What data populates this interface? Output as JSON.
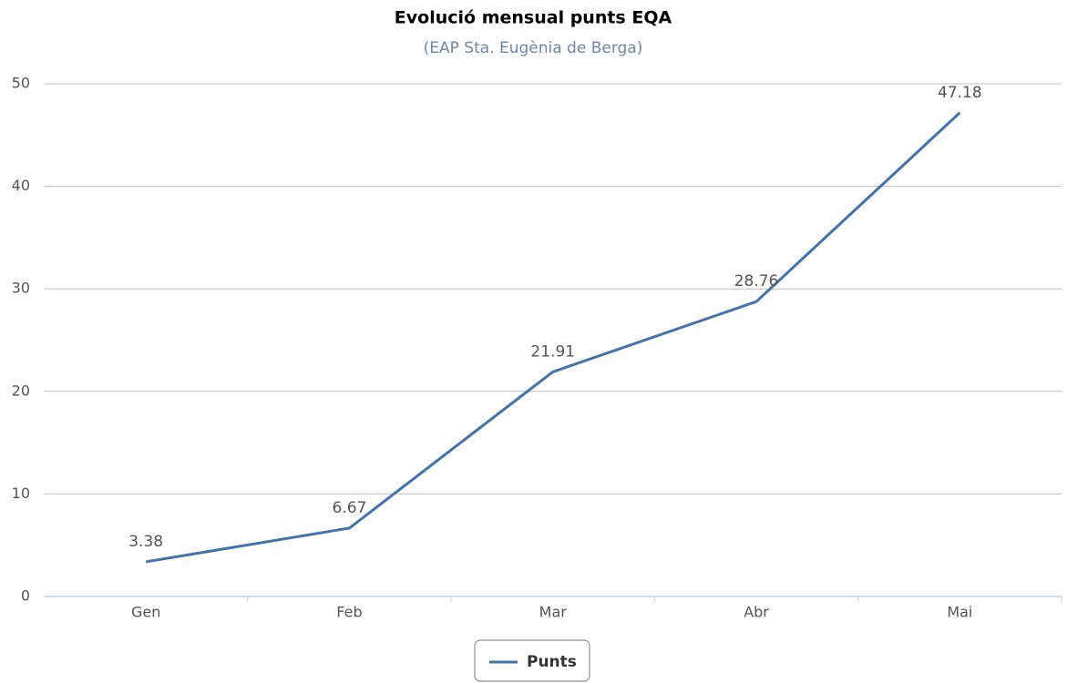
{
  "chart_data": {
    "type": "line",
    "title": "Evolució mensual punts EQA",
    "subtitle": "(EAP Sta. Eugènia de Berga)",
    "categories": [
      "Gen",
      "Feb",
      "Mar",
      "Abr",
      "Mai"
    ],
    "series": [
      {
        "name": "Punts",
        "color": "#4572a7",
        "values": [
          3.38,
          6.67,
          21.91,
          28.76,
          47.18
        ]
      }
    ],
    "ylim": [
      0,
      50
    ],
    "yticks": [
      0,
      10,
      20,
      30,
      40,
      50
    ],
    "grid": true,
    "legend": "bottom",
    "data_labels": true
  }
}
